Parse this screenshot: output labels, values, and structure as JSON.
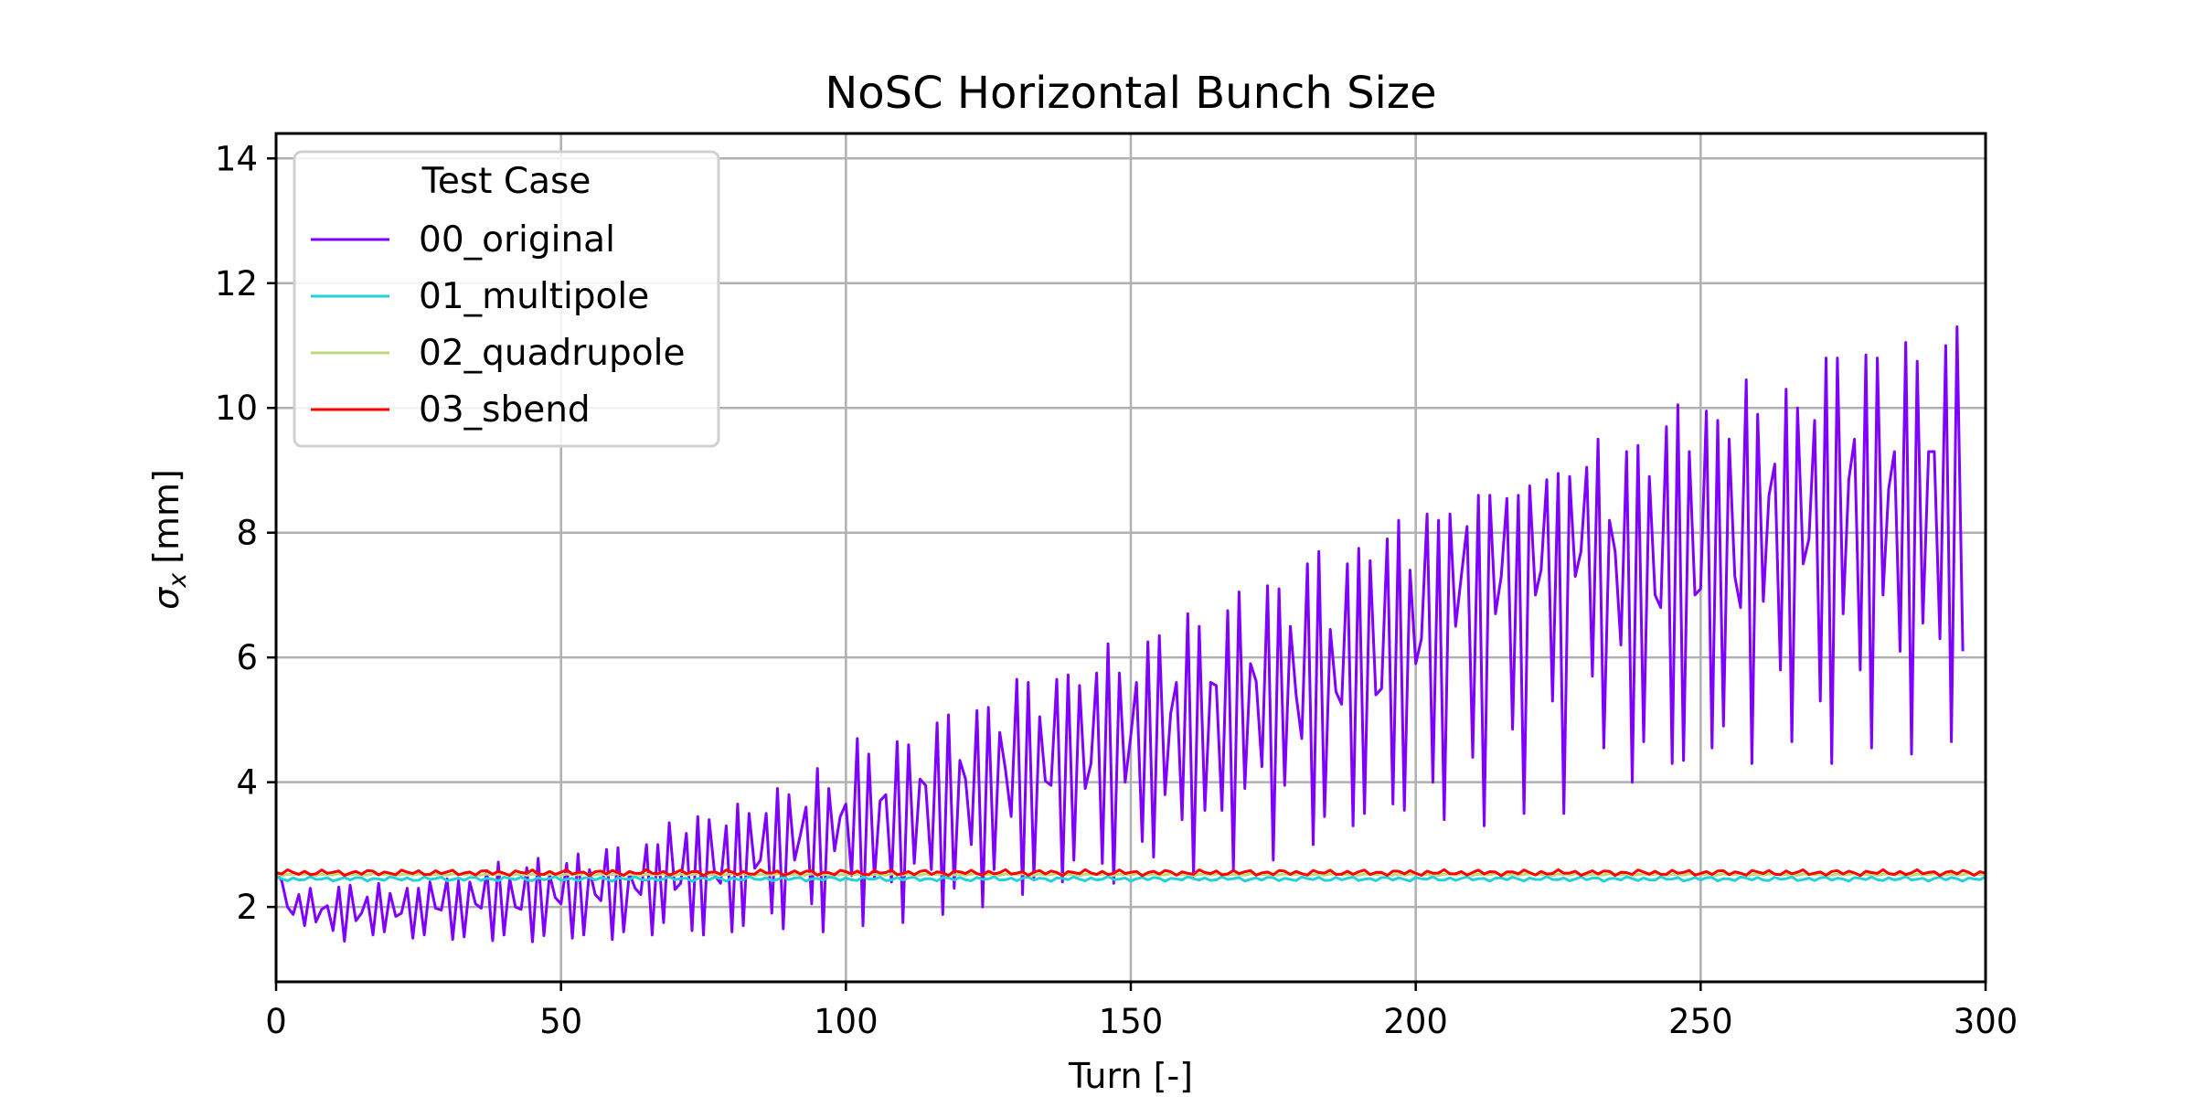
{
  "chart_data": {
    "type": "line",
    "title": "NoSC Horizontal Bunch Size",
    "xlabel": "Turn [-]",
    "ylabel_symbol": "σ",
    "ylabel_subscript": "x",
    "ylabel_unit": "[mm]",
    "xlim": [
      0,
      300
    ],
    "ylim": [
      0.8,
      14.4
    ],
    "xticks": [
      0,
      50,
      100,
      150,
      200,
      250,
      300
    ],
    "yticks": [
      2,
      4,
      6,
      8,
      10,
      12,
      14
    ],
    "grid": true,
    "legend": {
      "title": "Test Case",
      "placement": "top-left"
    },
    "series": [
      {
        "name": "00_original",
        "color": "#7f00ff",
        "x_start": 0,
        "x_step": 1,
        "values": [
          2.55,
          2.42,
          2.0,
          1.88,
          2.2,
          1.7,
          2.3,
          1.76,
          1.96,
          2.02,
          1.62,
          2.32,
          1.45,
          2.35,
          1.78,
          1.9,
          2.16,
          1.55,
          2.38,
          1.6,
          2.22,
          1.85,
          1.9,
          2.3,
          1.5,
          2.3,
          1.55,
          2.4,
          1.98,
          1.95,
          2.45,
          1.48,
          2.42,
          1.52,
          2.4,
          2.05,
          1.98,
          2.58,
          1.46,
          2.72,
          1.55,
          2.45,
          2.0,
          1.96,
          2.63,
          1.44,
          2.78,
          1.54,
          2.52,
          2.15,
          2.05,
          2.7,
          1.5,
          2.85,
          1.55,
          2.6,
          2.2,
          2.1,
          2.92,
          1.48,
          2.95,
          1.6,
          2.55,
          2.3,
          2.2,
          3.0,
          1.55,
          3.0,
          1.75,
          3.35,
          2.28,
          2.38,
          3.18,
          1.62,
          3.45,
          1.55,
          3.4,
          2.5,
          2.38,
          3.3,
          1.6,
          3.65,
          1.7,
          3.5,
          2.62,
          2.75,
          3.5,
          1.9,
          3.9,
          1.65,
          3.8,
          2.75,
          3.15,
          3.6,
          2.05,
          4.22,
          1.6,
          3.9,
          2.9,
          3.45,
          3.65,
          2.5,
          4.7,
          1.7,
          4.45,
          2.45,
          3.7,
          3.8,
          2.4,
          4.65,
          1.75,
          4.6,
          2.7,
          4.05,
          3.95,
          2.6,
          4.95,
          1.88,
          5.08,
          2.3,
          4.35,
          4.05,
          3.0,
          5.15,
          2.0,
          5.2,
          2.6,
          4.8,
          4.2,
          3.45,
          5.65,
          2.2,
          5.6,
          2.48,
          5.05,
          4.02,
          3.95,
          5.65,
          2.4,
          5.72,
          2.75,
          5.55,
          3.9,
          4.3,
          5.75,
          2.7,
          6.22,
          2.38,
          5.75,
          4.0,
          4.75,
          5.6,
          3.05,
          6.25,
          2.8,
          6.35,
          3.8,
          5.1,
          5.6,
          3.4,
          6.7,
          2.5,
          6.5,
          3.55,
          5.6,
          5.55,
          3.55,
          6.75,
          2.6,
          7.05,
          3.9,
          5.9,
          5.62,
          4.25,
          7.15,
          2.75,
          7.1,
          3.95,
          6.5,
          5.4,
          4.7,
          7.5,
          3.0,
          7.7,
          3.45,
          6.45,
          5.45,
          5.25,
          7.5,
          3.3,
          7.75,
          3.5,
          7.55,
          5.4,
          5.5,
          7.9,
          3.65,
          8.2,
          3.55,
          7.4,
          5.9,
          6.3,
          8.3,
          4.0,
          8.2,
          3.4,
          8.3,
          6.5,
          7.3,
          8.1,
          4.4,
          8.6,
          3.3,
          8.6,
          6.7,
          7.3,
          8.55,
          4.85,
          8.6,
          3.5,
          8.75,
          7.0,
          7.4,
          8.85,
          5.3,
          8.95,
          3.5,
          8.9,
          7.3,
          7.7,
          9.05,
          5.7,
          9.5,
          4.55,
          8.2,
          7.7,
          6.2,
          9.3,
          4.0,
          9.4,
          4.65,
          8.9,
          7.0,
          6.8,
          9.7,
          4.3,
          10.05,
          4.35,
          9.3,
          7.0,
          7.1,
          9.95,
          4.55,
          9.8,
          4.9,
          9.5,
          7.3,
          6.8,
          10.45,
          4.3,
          9.9,
          6.9,
          8.6,
          9.1,
          5.8,
          10.3,
          4.65,
          10.0,
          7.5,
          7.9,
          9.8,
          5.3,
          10.8,
          4.3,
          10.8,
          6.7,
          8.85,
          9.5,
          5.8,
          10.85,
          4.55,
          10.8,
          7.0,
          8.7,
          9.3,
          6.1,
          11.05,
          4.45,
          10.75,
          6.55,
          9.3,
          9.3,
          6.3,
          11.0,
          4.65,
          11.3,
          6.1
        ]
      },
      {
        "name": "01_multipole",
        "color": "#1fd2dc",
        "x_start": 0,
        "x_step": 1,
        "base": 2.45,
        "amplitude": 0.04
      },
      {
        "name": "02_quadrupole",
        "color": "#c0d87a",
        "x_start": 0,
        "x_step": 1,
        "base": 2.52,
        "amplitude": 0.015
      },
      {
        "name": "03_sbend",
        "color": "#ff0000",
        "x_start": 0,
        "x_step": 1,
        "base": 2.55,
        "amplitude": 0.05
      }
    ]
  }
}
